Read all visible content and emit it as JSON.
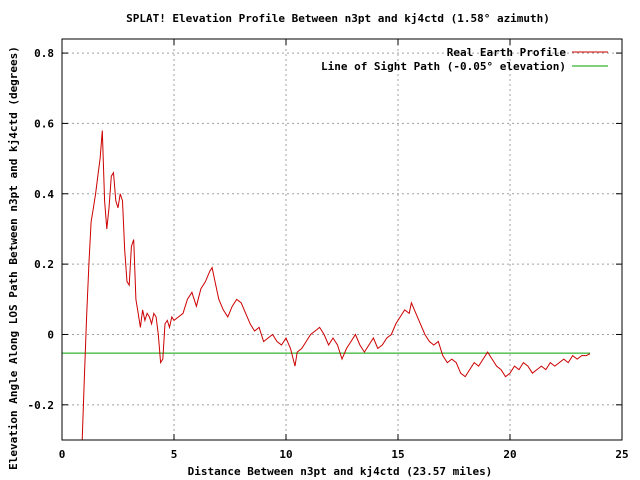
{
  "chart_data": {
    "type": "line",
    "title": "SPLAT! Elevation Profile Between n3pt and kj4ctd (1.58° azimuth)",
    "xlabel": "Distance Between n3pt and kj4ctd (23.57 miles)",
    "ylabel": "Elevation Angle Along LOS Path Between n3pt and kj4ctd (degrees)",
    "xlim": [
      0,
      25
    ],
    "ylim": [
      -0.3,
      0.84
    ],
    "xticks": [
      0,
      5,
      10,
      15,
      20,
      25
    ],
    "xtick_labels": [
      "0",
      "5",
      "10",
      "15",
      "20",
      "25"
    ],
    "yticks": [
      -0.2,
      0,
      0.2,
      0.4,
      0.6,
      0.8
    ],
    "ytick_labels": [
      "-0.2",
      "0",
      "0.2",
      "0.4",
      "0.6",
      "0.8"
    ],
    "grid": true,
    "legend_position": "top-right",
    "series": [
      {
        "name": "Real Earth Profile",
        "color": "#cc0000",
        "x": [
          0.9,
          1.0,
          1.1,
          1.2,
          1.3,
          1.4,
          1.5,
          1.6,
          1.7,
          1.8,
          1.9,
          2.0,
          2.1,
          2.2,
          2.3,
          2.4,
          2.5,
          2.6,
          2.7,
          2.8,
          2.9,
          3.0,
          3.1,
          3.2,
          3.3,
          3.4,
          3.5,
          3.6,
          3.7,
          3.8,
          3.9,
          4.0,
          4.1,
          4.2,
          4.3,
          4.4,
          4.5,
          4.6,
          4.7,
          4.8,
          4.9,
          5.0,
          5.2,
          5.4,
          5.6,
          5.8,
          6.0,
          6.2,
          6.4,
          6.6,
          6.7,
          6.8,
          7.0,
          7.2,
          7.4,
          7.6,
          7.8,
          8.0,
          8.2,
          8.4,
          8.6,
          8.8,
          9.0,
          9.2,
          9.4,
          9.6,
          9.8,
          10.0,
          10.2,
          10.4,
          10.5,
          10.7,
          10.9,
          11.1,
          11.3,
          11.5,
          11.7,
          11.9,
          12.1,
          12.3,
          12.5,
          12.7,
          12.9,
          13.1,
          13.3,
          13.5,
          13.7,
          13.9,
          14.1,
          14.3,
          14.5,
          14.7,
          14.9,
          15.1,
          15.3,
          15.5,
          15.6,
          15.8,
          16.0,
          16.2,
          16.4,
          16.6,
          16.8,
          17.0,
          17.2,
          17.4,
          17.6,
          17.8,
          18.0,
          18.2,
          18.4,
          18.6,
          18.8,
          19.0,
          19.2,
          19.4,
          19.6,
          19.8,
          20.0,
          20.2,
          20.4,
          20.6,
          20.8,
          21.0,
          21.2,
          21.4,
          21.6,
          21.8,
          22.0,
          22.2,
          22.4,
          22.6,
          22.8,
          23.0,
          23.2,
          23.4,
          23.57
        ],
        "y": [
          -0.3,
          -0.12,
          0.05,
          0.2,
          0.32,
          0.36,
          0.4,
          0.45,
          0.5,
          0.58,
          0.38,
          0.3,
          0.36,
          0.45,
          0.46,
          0.38,
          0.36,
          0.4,
          0.38,
          0.24,
          0.15,
          0.14,
          0.25,
          0.27,
          0.1,
          0.06,
          0.02,
          0.07,
          0.04,
          0.06,
          0.05,
          0.03,
          0.06,
          0.05,
          0.0,
          -0.08,
          -0.07,
          0.03,
          0.04,
          0.02,
          0.05,
          0.04,
          0.05,
          0.06,
          0.1,
          0.12,
          0.08,
          0.13,
          0.15,
          0.18,
          0.19,
          0.16,
          0.1,
          0.07,
          0.05,
          0.08,
          0.1,
          0.09,
          0.06,
          0.03,
          0.01,
          0.02,
          -0.02,
          -0.01,
          0.0,
          -0.02,
          -0.03,
          -0.01,
          -0.04,
          -0.09,
          -0.05,
          -0.04,
          -0.02,
          0.0,
          0.01,
          0.02,
          0.0,
          -0.03,
          -0.01,
          -0.03,
          -0.07,
          -0.04,
          -0.02,
          0.0,
          -0.03,
          -0.05,
          -0.03,
          -0.01,
          -0.04,
          -0.03,
          -0.01,
          0.0,
          0.03,
          0.05,
          0.07,
          0.06,
          0.09,
          0.06,
          0.03,
          0.0,
          -0.02,
          -0.03,
          -0.02,
          -0.06,
          -0.08,
          -0.07,
          -0.08,
          -0.11,
          -0.12,
          -0.1,
          -0.08,
          -0.09,
          -0.07,
          -0.05,
          -0.07,
          -0.09,
          -0.1,
          -0.12,
          -0.11,
          -0.09,
          -0.1,
          -0.08,
          -0.09,
          -0.11,
          -0.1,
          -0.09,
          -0.1,
          -0.08,
          -0.09,
          -0.08,
          -0.07,
          -0.08,
          -0.06,
          -0.07,
          -0.06,
          -0.06,
          -0.055
        ]
      },
      {
        "name": "Line of Sight Path (-0.05° elevation)",
        "color": "#00a000",
        "x": [
          0,
          23.57
        ],
        "y": [
          -0.053,
          -0.053
        ]
      }
    ]
  }
}
